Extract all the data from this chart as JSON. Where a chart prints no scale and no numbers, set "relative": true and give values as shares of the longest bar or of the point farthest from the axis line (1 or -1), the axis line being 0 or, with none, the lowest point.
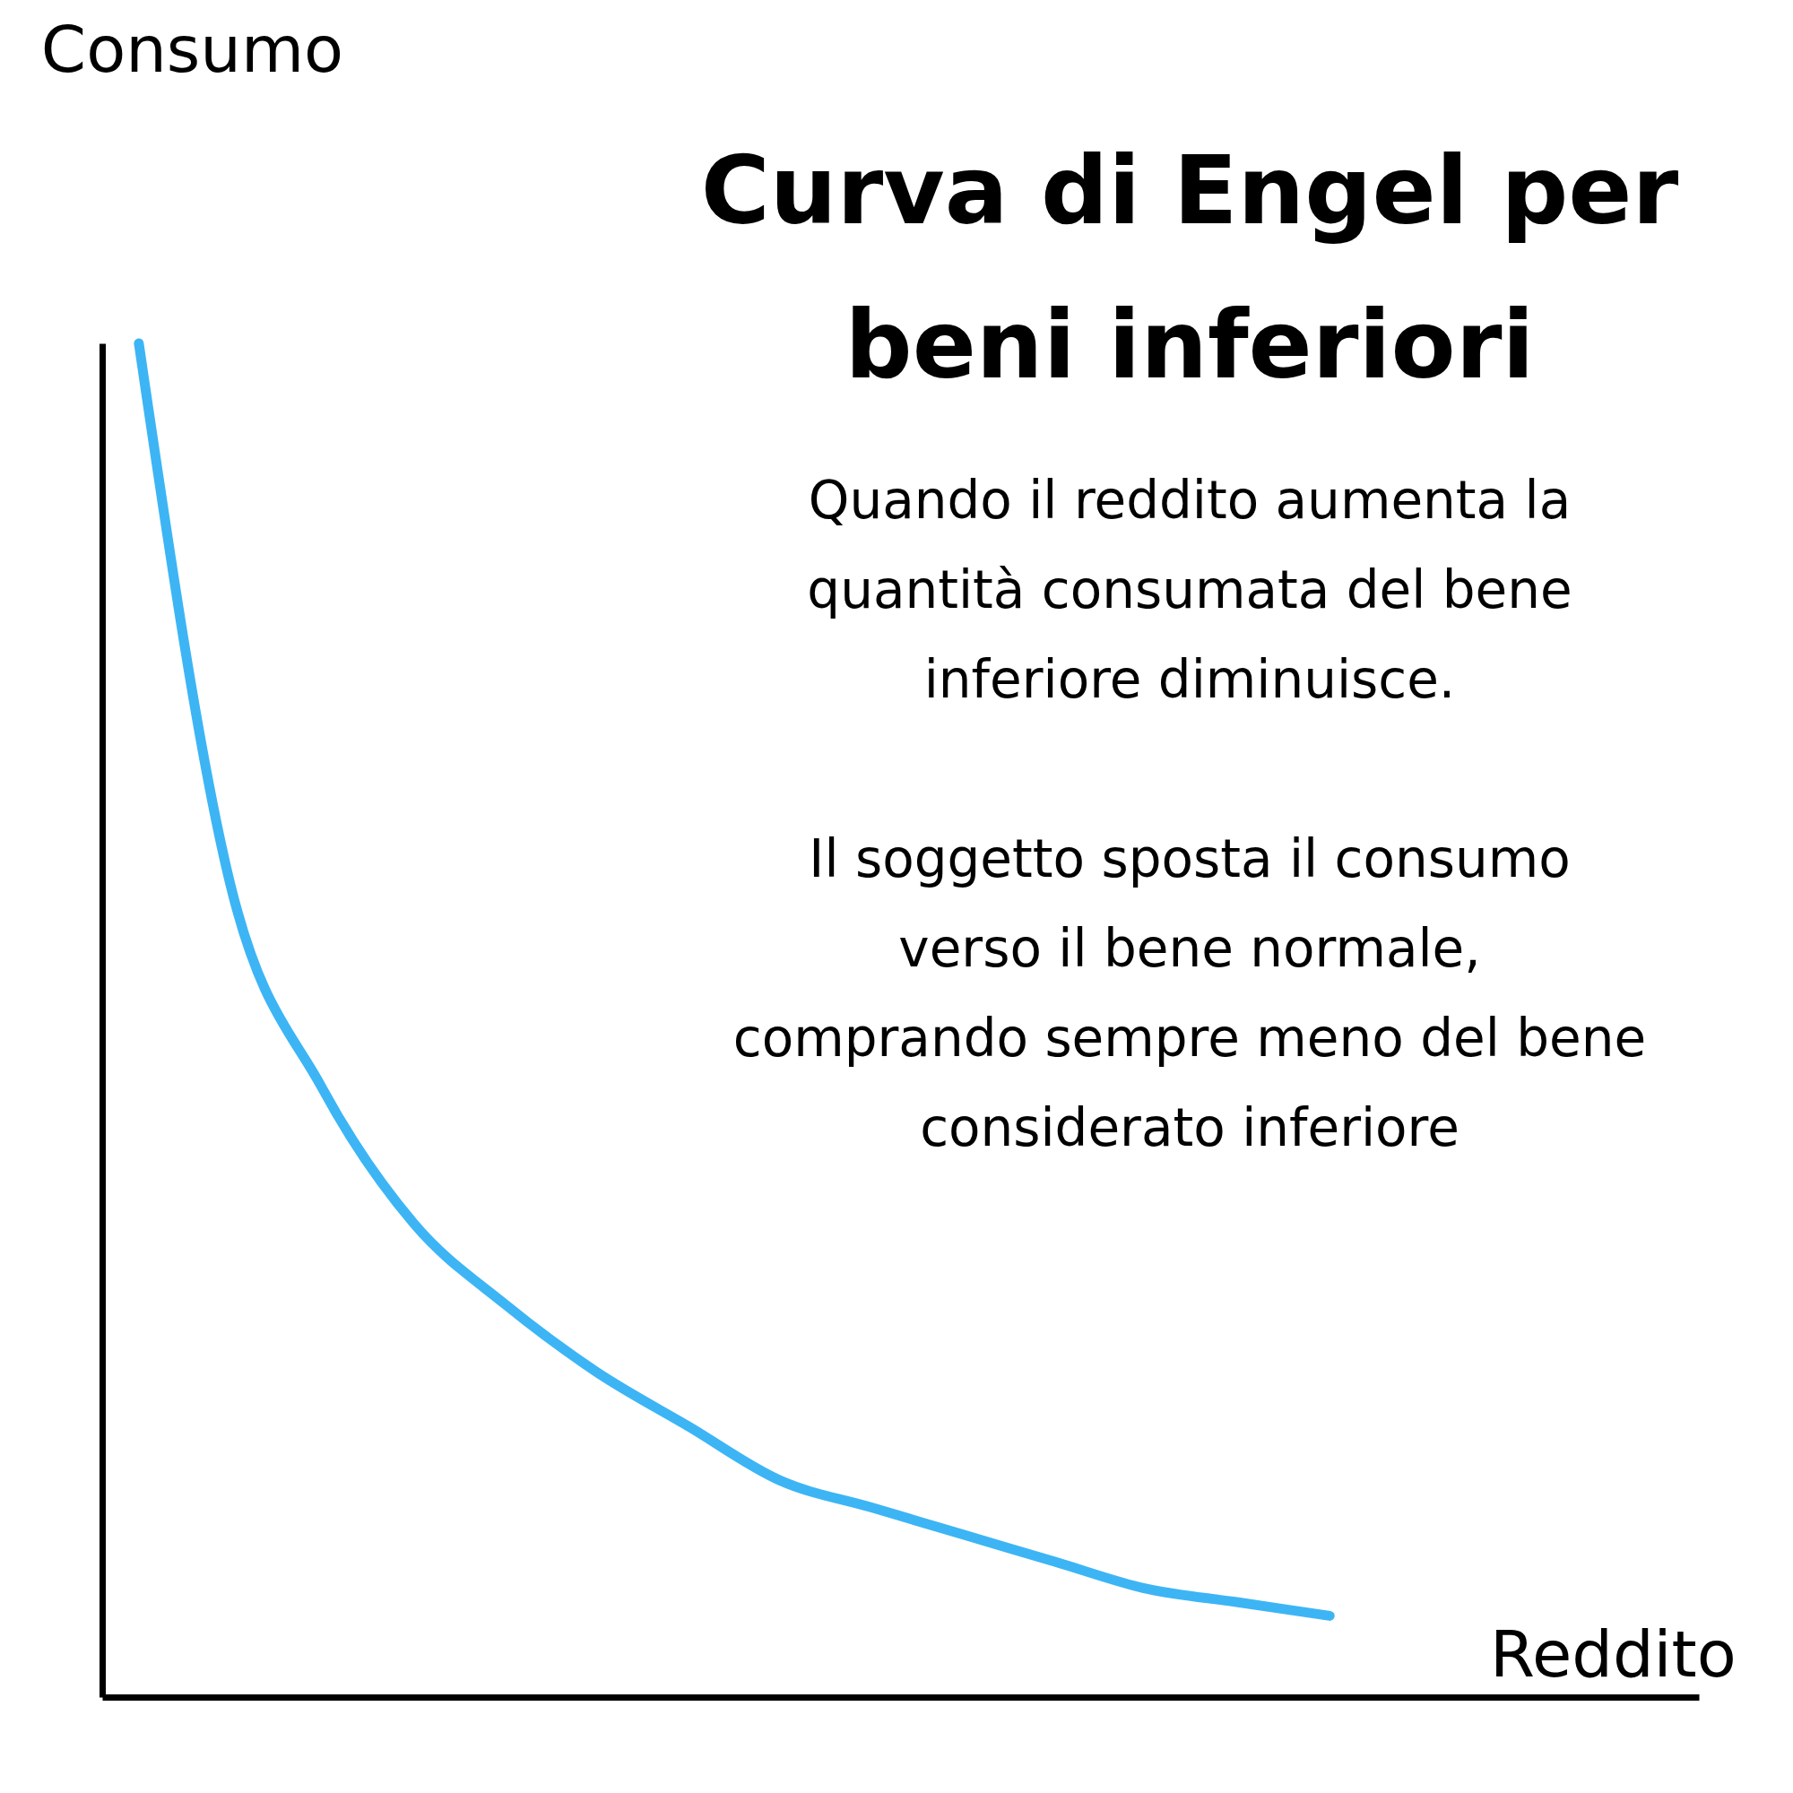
{
  "chart_data": {
    "type": "line",
    "title": "Curva di Engel per beni inferiori",
    "xlabel": "Reddito",
    "ylabel": "Consumo",
    "relative": true,
    "categories": [
      null,
      null,
      null,
      null,
      null,
      null,
      null,
      null,
      null,
      null,
      null,
      null,
      null,
      null
    ],
    "series": [
      {
        "color": "#3db5f5",
        "values": [
          1.0,
          0.6,
          0.45,
          0.35,
          0.29,
          0.24,
          0.2,
          0.16,
          0.14,
          0.12,
          0.1,
          0.08,
          0.07,
          0.06
        ]
      }
    ],
    "annotations": [
      "Quando il reddito aumenta la quantità consumata del bene inferiore diminuisce.",
      "Il soggetto sposta il consumo verso il bene normale, comprando sempre meno del bene considerato inferiore"
    ]
  }
}
